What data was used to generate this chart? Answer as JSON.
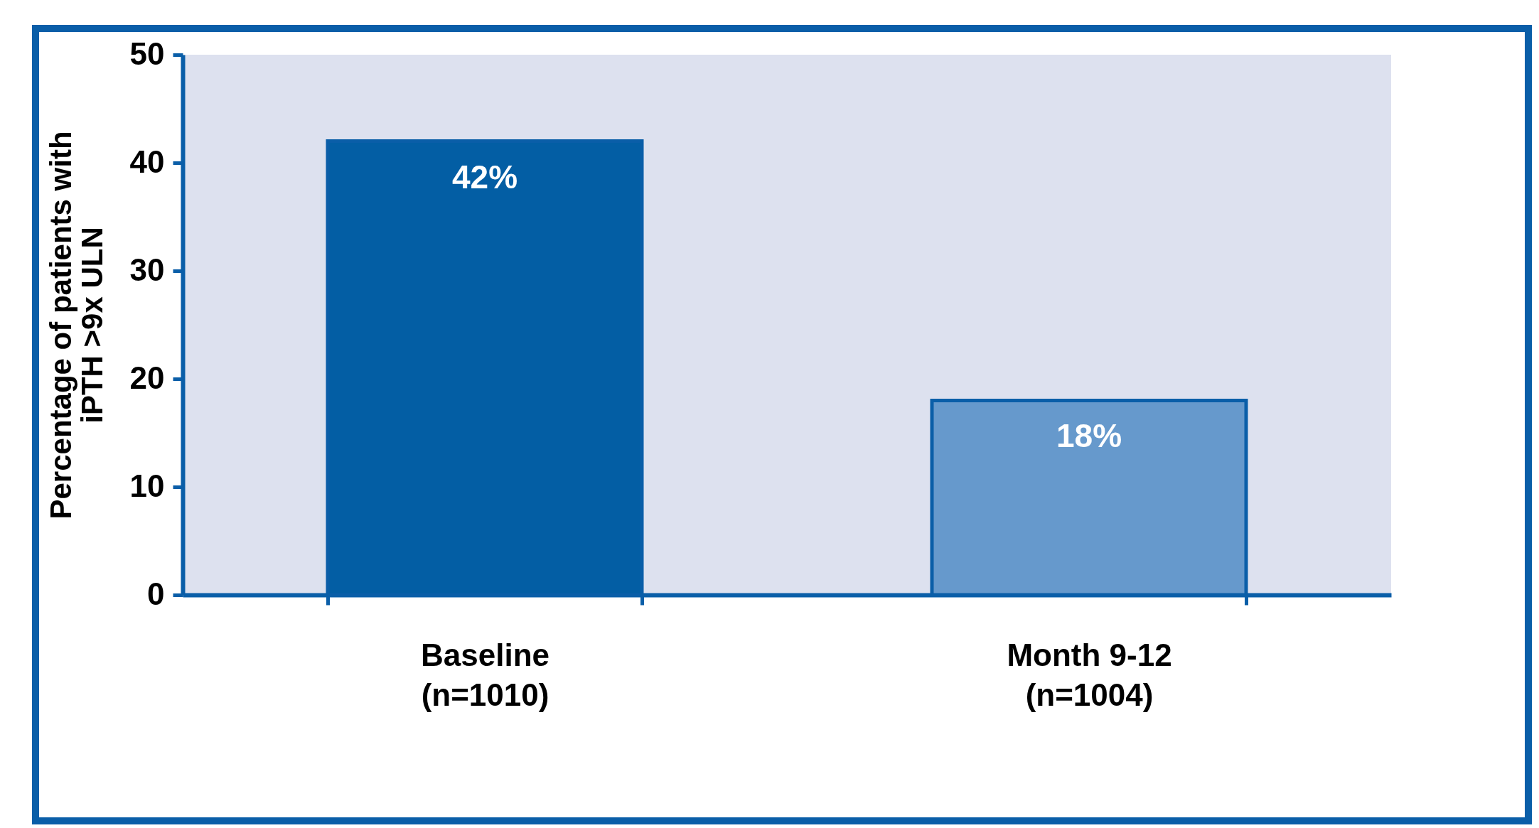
{
  "chart_data": {
    "type": "bar",
    "ylabel": "Percentage of patients with\niPTH >9x ULN",
    "categories": [
      "Baseline\n(n=1010)",
      "Month 9-12\n(n=1004)"
    ],
    "values": [
      42,
      18
    ],
    "colors": [
      "#035ea4",
      "#6699cc"
    ],
    "value_labels": [
      "42%",
      "18%"
    ],
    "ylim": [
      0,
      50
    ],
    "yticks": [
      0,
      10,
      20,
      30,
      40,
      50
    ],
    "grid": false,
    "legend": false
  }
}
